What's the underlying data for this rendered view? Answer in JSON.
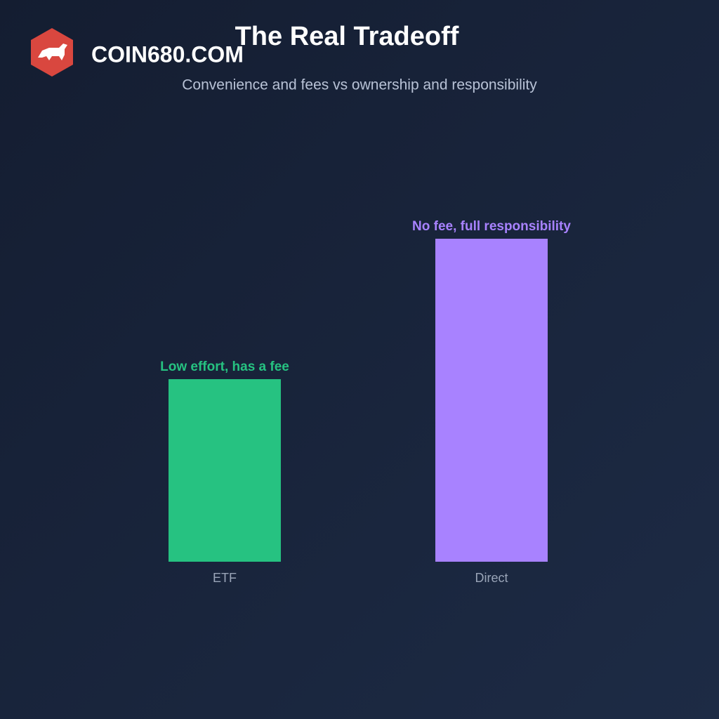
{
  "watermark": "COIN680.COM",
  "chart_data": {
    "type": "bar",
    "title": "The Real Tradeoff",
    "subtitle": "Convenience and fees vs ownership and responsibility",
    "categories": [
      "ETF",
      "Direct"
    ],
    "values": [
      1.3,
      2.3
    ],
    "value_labels": [
      "Low effort, has a fee",
      "No fee, full responsibility"
    ],
    "colors": [
      "#26c281",
      "#a882ff"
    ],
    "ylim": [
      0,
      2.5
    ]
  }
}
